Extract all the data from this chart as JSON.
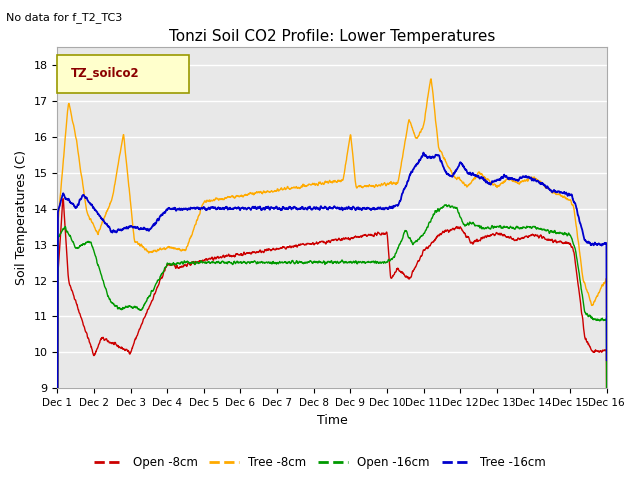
{
  "title": "Tonzi Soil CO2 Profile: Lower Temperatures",
  "subtitle": "No data for f_T2_TC3",
  "xlabel": "Time",
  "ylabel": "Soil Temperatures (C)",
  "ylim": [
    9.0,
    18.5
  ],
  "yticks": [
    9.0,
    10.0,
    11.0,
    12.0,
    13.0,
    14.0,
    15.0,
    16.0,
    17.0,
    18.0
  ],
  "bg_color": "#e8e8e8",
  "legend_label": "TZ_soilco2",
  "legend_entries": [
    "Open -8cm",
    "Tree -8cm",
    "Open -16cm",
    "Tree -16cm"
  ],
  "legend_colors": [
    "#cc0000",
    "#ffaa00",
    "#009900",
    "#0000cc"
  ],
  "xtick_labels": [
    "Dec 1",
    "Dec 2",
    "Dec 3",
    "Dec 4",
    "Dec 5",
    "Dec 6",
    "Dec 7",
    "Dec 8",
    "Dec 9",
    "Dec 10",
    "Dec 11",
    "Dec 12",
    "Dec 13",
    "Dec 14",
    "Dec 15",
    "Dec 16"
  ]
}
